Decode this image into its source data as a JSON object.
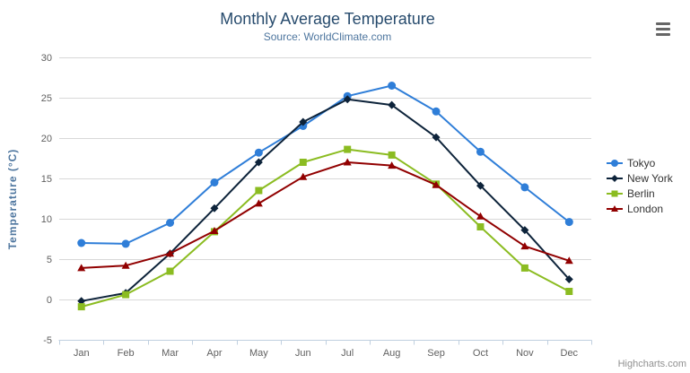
{
  "header": {
    "title": "Monthly Average Temperature",
    "subtitle": "Source: WorldClimate.com"
  },
  "credits": {
    "label": "Highcharts.com"
  },
  "icons": {
    "menu": "hamburger-menu-icon"
  },
  "colors": {
    "title": "#274b6d",
    "subtitle": "#4d759e",
    "axis_title": "#4d759e",
    "axis_label": "#606060",
    "grid": "#d8d8d8",
    "axis_line": "#c0d0e0",
    "legend_text": "#333333",
    "credits": "#909090",
    "menu_icon": "#666666"
  },
  "chart_data": {
    "type": "line",
    "title": "Monthly Average Temperature",
    "subtitle": "Source: WorldClimate.com",
    "xlabel": "",
    "ylabel": "Temperature (°C)",
    "ylim": [
      -5,
      30
    ],
    "yticks": [
      -5,
      0,
      5,
      10,
      15,
      20,
      25,
      30
    ],
    "grid": true,
    "legend_position": "right",
    "categories": [
      "Jan",
      "Feb",
      "Mar",
      "Apr",
      "May",
      "Jun",
      "Jul",
      "Aug",
      "Sep",
      "Oct",
      "Nov",
      "Dec"
    ],
    "series": [
      {
        "name": "Tokyo",
        "color": "#2f7ed8",
        "marker": "circle",
        "values": [
          7.0,
          6.9,
          9.5,
          14.5,
          18.2,
          21.5,
          25.2,
          26.5,
          23.3,
          18.3,
          13.9,
          9.6
        ]
      },
      {
        "name": "New York",
        "color": "#0d233a",
        "marker": "diamond",
        "values": [
          -0.2,
          0.8,
          5.7,
          11.3,
          17.0,
          22.0,
          24.8,
          24.1,
          20.1,
          14.1,
          8.6,
          2.5
        ]
      },
      {
        "name": "Berlin",
        "color": "#8bbc21",
        "marker": "square",
        "values": [
          -0.9,
          0.6,
          3.5,
          8.4,
          13.5,
          17.0,
          18.6,
          17.9,
          14.3,
          9.0,
          3.9,
          1.0
        ]
      },
      {
        "name": "London",
        "color": "#910000",
        "marker": "triangle",
        "values": [
          3.9,
          4.2,
          5.7,
          8.5,
          11.9,
          15.2,
          17.0,
          16.6,
          14.2,
          10.3,
          6.6,
          4.8
        ]
      }
    ]
  }
}
